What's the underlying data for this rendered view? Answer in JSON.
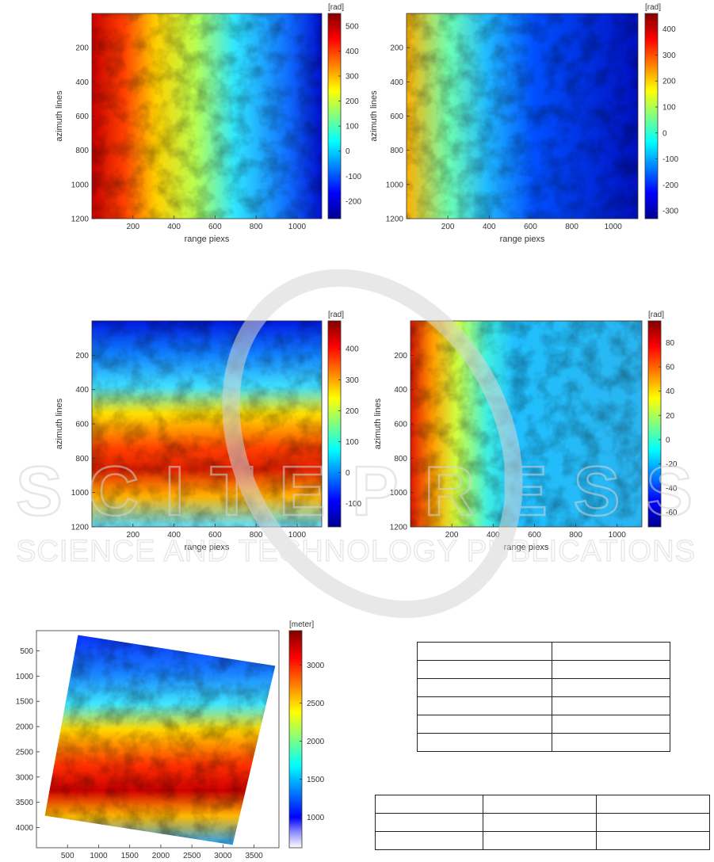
{
  "chart_data": [
    {
      "type": "heatmap",
      "panel": "top-left",
      "xlabel": "range piexs",
      "ylabel": "azimuth lines",
      "colorbar_unit": "[rad]",
      "colormap": "jet",
      "xlim": [
        0,
        1120
      ],
      "ylim": [
        0,
        1200
      ],
      "x_ticks": [
        200,
        400,
        600,
        800,
        1000
      ],
      "y_ticks": [
        200,
        400,
        600,
        800,
        1000,
        1200
      ],
      "clim": [
        -270,
        550
      ],
      "colorbar_ticks": [
        -200,
        -100,
        0,
        100,
        200,
        300,
        400,
        500
      ]
    },
    {
      "type": "heatmap",
      "panel": "top-right",
      "xlabel": "range piexs",
      "ylabel": "azimuth lines",
      "colorbar_unit": "[rad]",
      "colormap": "jet",
      "xlim": [
        0,
        1120
      ],
      "ylim": [
        0,
        1200
      ],
      "x_ticks": [
        200,
        400,
        600,
        800,
        1000
      ],
      "y_ticks": [
        200,
        400,
        600,
        800,
        1000,
        1200
      ],
      "clim": [
        -330,
        460
      ],
      "colorbar_ticks": [
        -300,
        -200,
        -100,
        0,
        100,
        200,
        300,
        400
      ]
    },
    {
      "type": "heatmap",
      "panel": "middle-left",
      "xlabel": "range piexs",
      "ylabel": "azimuth lines",
      "colorbar_unit": "[rad]",
      "colormap": "jet",
      "xlim": [
        0,
        1120
      ],
      "ylim": [
        0,
        1200
      ],
      "x_ticks": [
        200,
        400,
        600,
        800,
        1000
      ],
      "y_ticks": [
        200,
        400,
        600,
        800,
        1000,
        1200
      ],
      "clim": [
        -175,
        490
      ],
      "colorbar_ticks": [
        -100,
        0,
        100,
        200,
        300,
        400
      ]
    },
    {
      "type": "heatmap",
      "panel": "middle-right",
      "xlabel": "range piexs",
      "ylabel": "azimuth lines",
      "colorbar_unit": "[rad]",
      "colormap": "jet",
      "xlim": [
        0,
        1120
      ],
      "ylim": [
        0,
        1200
      ],
      "x_ticks": [
        200,
        400,
        600,
        800,
        1000
      ],
      "y_ticks": [
        200,
        400,
        600,
        800,
        1000,
        1200
      ],
      "clim": [
        -72,
        98
      ],
      "colorbar_ticks": [
        -60,
        -40,
        -20,
        0,
        20,
        40,
        60,
        80
      ]
    },
    {
      "type": "heatmap",
      "panel": "bottom-left",
      "xlabel": "",
      "ylabel": "",
      "colorbar_unit": "[meter]",
      "colormap": "jet",
      "xlim": [
        0,
        3900
      ],
      "ylim": [
        100,
        4400
      ],
      "x_ticks": [
        500,
        1000,
        1500,
        2000,
        2500,
        3000,
        3500
      ],
      "y_ticks": [
        500,
        1000,
        1500,
        2000,
        2500,
        3000,
        3500,
        4000
      ],
      "clim": [
        600,
        3450
      ],
      "colorbar_ticks": [
        1000,
        1500,
        2000,
        2500,
        3000
      ]
    }
  ],
  "tables": [
    {
      "name": "table-upper",
      "rows": 6,
      "cols": 2,
      "cells": [
        [
          "",
          ""
        ],
        [
          "",
          ""
        ],
        [
          "",
          ""
        ],
        [
          "",
          ""
        ],
        [
          "",
          ""
        ],
        [
          "",
          ""
        ]
      ]
    },
    {
      "name": "table-lower",
      "rows": 3,
      "cols": 3,
      "cells": [
        [
          "",
          "",
          ""
        ],
        [
          "",
          "",
          ""
        ],
        [
          "",
          "",
          ""
        ]
      ]
    }
  ],
  "watermark": {
    "main": "SCITEPRESS",
    "sub": "SCIENCE AND TECHNOLOGY PUBLICATIONS"
  }
}
